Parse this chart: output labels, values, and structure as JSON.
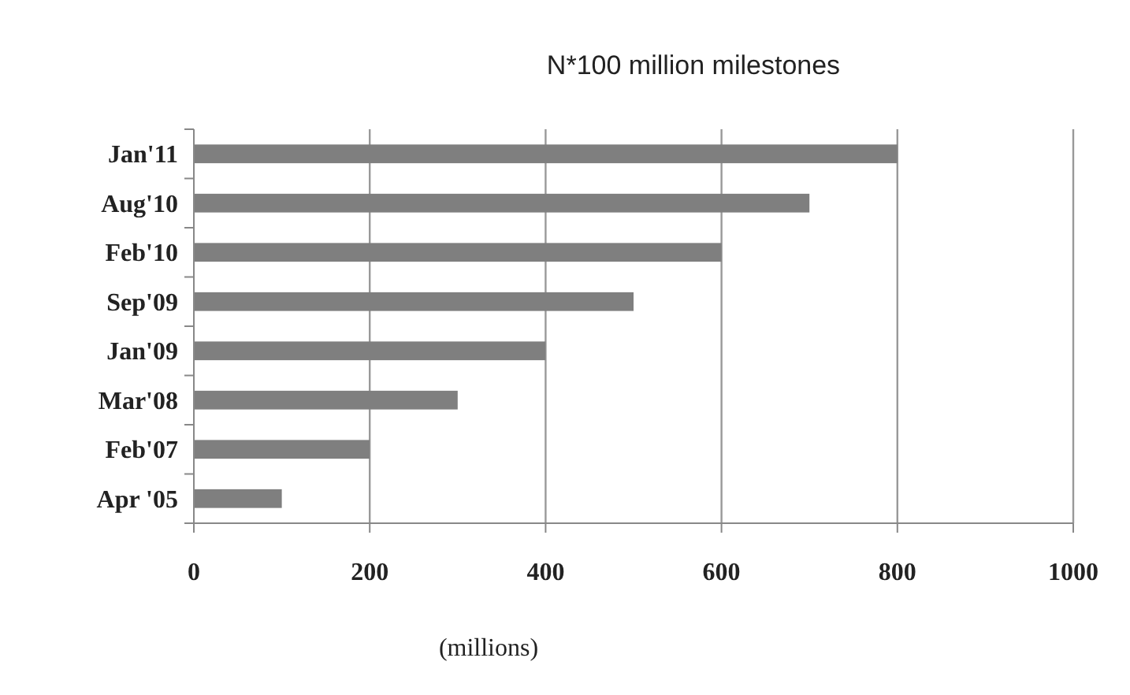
{
  "chart_data": {
    "type": "bar",
    "orientation": "horizontal",
    "title": "N*100 million milestones",
    "xlabel": "(millions)",
    "categories": [
      "Jan'11",
      "Aug'10",
      "Feb'10",
      "Sep'09",
      "Jan'09",
      "Mar'08",
      "Feb'07",
      "Apr '05"
    ],
    "values": [
      800,
      700,
      600,
      500,
      400,
      300,
      200,
      100
    ],
    "color": "#7f7f7f",
    "xlim": [
      0,
      1000
    ],
    "xticks": [
      0,
      200,
      400,
      600,
      800,
      1000
    ],
    "grid": "x"
  }
}
